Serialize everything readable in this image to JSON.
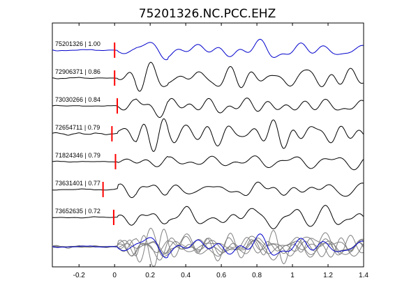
{
  "chart_data": {
    "type": "line",
    "title": "75201326.NC.PCC.EHZ",
    "xlabel": "",
    "ylabel": "",
    "xlim": [
      -0.35,
      1.4
    ],
    "xticks": [
      "-0.2",
      "0",
      "0.2",
      "0.4",
      "0.6",
      "0.8",
      "1",
      "1.2",
      "1.4"
    ],
    "xtick_values": [
      -0.2,
      0,
      0.2,
      0.4,
      0.6,
      0.8,
      1.0,
      1.2,
      1.4
    ],
    "grid": false,
    "colors": {
      "reference": "#0000cc",
      "match": "#000000",
      "overlay_match": "#808080",
      "pick": "#ff0000"
    },
    "series": [
      {
        "label": "75201326 | 1.00",
        "pick_time": 0.0
      },
      {
        "label": "72906371 | 0.86",
        "pick_time": 0.0
      },
      {
        "label": "73030266 | 0.84",
        "pick_time": 0.015
      },
      {
        "label": "72654711 | 0.79",
        "pick_time": -0.015
      },
      {
        "label": "71824346 | 0.79",
        "pick_time": 0.005
      },
      {
        "label": "73631401 | 0.77",
        "pick_time": -0.065
      },
      {
        "label": "73652635 | 0.72",
        "pick_time": -0.005
      }
    ]
  }
}
